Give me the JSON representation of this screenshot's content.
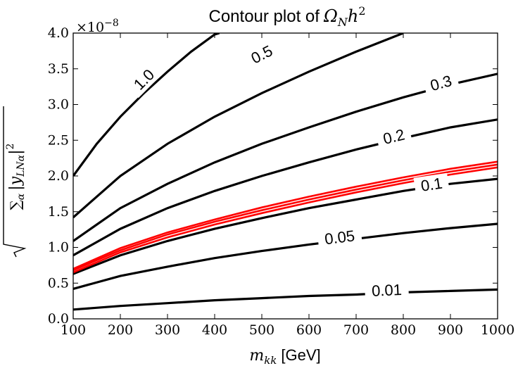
{
  "chart_data": {
    "type": "contour",
    "title_prefix": "Contour plot of",
    "title_math": "Ω",
    "title_math_sub": "N",
    "title_math_tail": "h",
    "title_math_sup": "2",
    "xlabel_math": "m",
    "xlabel_math_sub": "kk",
    "xlabel_unit": "[GeV]",
    "ylabel_root_sum": "∑",
    "ylabel_root_sum_sub": "α",
    "ylabel_root_body": "|y",
    "ylabel_root_body_sub": "LNα",
    "ylabel_root_tail": "|",
    "ylabel_root_sup": "2",
    "y_offset_text": "×10",
    "y_offset_exp": "−8",
    "xlim": [
      100,
      1000
    ],
    "ylim": [
      0.0,
      4.0
    ],
    "x_ticks": [
      "100",
      "200",
      "300",
      "400",
      "500",
      "600",
      "700",
      "800",
      "900",
      "1000"
    ],
    "y_ticks": [
      "0.0",
      "0.5",
      "1.0",
      "1.5",
      "2.0",
      "2.5",
      "3.0",
      "3.5",
      "4.0"
    ],
    "levels": [
      {
        "label": "1.0",
        "color": "#000000",
        "points": [
          [
            100,
            2.0
          ],
          [
            150,
            2.45
          ],
          [
            200,
            2.83
          ],
          [
            250,
            3.16
          ],
          [
            300,
            3.46
          ],
          [
            350,
            3.74
          ],
          [
            400,
            3.98
          ],
          [
            410,
            4.0
          ]
        ],
        "label_at": [
          250,
          3.35
        ]
      },
      {
        "label": "0.5",
        "color": "#000000",
        "points": [
          [
            100,
            1.42
          ],
          [
            200,
            2.0
          ],
          [
            300,
            2.45
          ],
          [
            400,
            2.83
          ],
          [
            500,
            3.16
          ],
          [
            600,
            3.46
          ],
          [
            700,
            3.74
          ],
          [
            800,
            4.0
          ]
        ],
        "label_at": [
          500,
          3.7
        ]
      },
      {
        "label": "0.3",
        "color": "#000000",
        "points": [
          [
            100,
            1.09
          ],
          [
            200,
            1.55
          ],
          [
            300,
            1.89
          ],
          [
            400,
            2.19
          ],
          [
            500,
            2.45
          ],
          [
            600,
            2.68
          ],
          [
            700,
            2.9
          ],
          [
            800,
            3.1
          ],
          [
            900,
            3.28
          ],
          [
            1000,
            3.43
          ]
        ],
        "label_at": [
          880,
          3.3
        ]
      },
      {
        "label": "0.2",
        "color": "#000000",
        "points": [
          [
            100,
            0.89
          ],
          [
            200,
            1.26
          ],
          [
            300,
            1.55
          ],
          [
            400,
            1.79
          ],
          [
            500,
            2.0
          ],
          [
            600,
            2.19
          ],
          [
            700,
            2.37
          ],
          [
            800,
            2.53
          ],
          [
            900,
            2.68
          ],
          [
            1000,
            2.79
          ]
        ],
        "label_at": [
          780,
          2.55
        ]
      },
      {
        "label": "0.1",
        "color": "#000000",
        "points": [
          [
            100,
            0.63
          ],
          [
            200,
            0.89
          ],
          [
            300,
            1.09
          ],
          [
            400,
            1.26
          ],
          [
            500,
            1.41
          ],
          [
            600,
            1.55
          ],
          [
            700,
            1.67
          ],
          [
            800,
            1.79
          ],
          [
            900,
            1.89
          ],
          [
            1000,
            1.96
          ]
        ],
        "label_at": [
          860,
          1.88
        ]
      },
      {
        "label": "0.05",
        "color": "#000000",
        "points": [
          [
            100,
            0.42
          ],
          [
            200,
            0.6
          ],
          [
            300,
            0.73
          ],
          [
            400,
            0.85
          ],
          [
            500,
            0.95
          ],
          [
            600,
            1.04
          ],
          [
            700,
            1.12
          ],
          [
            800,
            1.2
          ],
          [
            900,
            1.27
          ],
          [
            1000,
            1.33
          ]
        ],
        "label_at": [
          665,
          1.14
        ]
      },
      {
        "label": "0.01",
        "color": "#000000",
        "points": [
          [
            100,
            0.13
          ],
          [
            200,
            0.18
          ],
          [
            300,
            0.22
          ],
          [
            400,
            0.26
          ],
          [
            500,
            0.29
          ],
          [
            600,
            0.32
          ],
          [
            700,
            0.34
          ],
          [
            800,
            0.37
          ],
          [
            900,
            0.39
          ],
          [
            1000,
            0.41
          ]
        ],
        "label_at": [
          765,
          0.4
        ]
      }
    ],
    "highlight": {
      "color": "#ff0000",
      "curves": [
        [
          [
            100,
            0.65
          ],
          [
            200,
            0.93
          ],
          [
            300,
            1.14
          ],
          [
            400,
            1.32
          ],
          [
            500,
            1.48
          ],
          [
            600,
            1.63
          ],
          [
            700,
            1.77
          ],
          [
            800,
            1.9
          ],
          [
            900,
            2.02
          ],
          [
            1000,
            2.12
          ]
        ],
        [
          [
            100,
            0.68
          ],
          [
            200,
            0.96
          ],
          [
            300,
            1.18
          ],
          [
            400,
            1.36
          ],
          [
            500,
            1.52
          ],
          [
            600,
            1.67
          ],
          [
            700,
            1.81
          ],
          [
            800,
            1.94
          ],
          [
            900,
            2.06
          ],
          [
            1000,
            2.16
          ]
        ],
        [
          [
            100,
            0.7
          ],
          [
            200,
            0.99
          ],
          [
            300,
            1.21
          ],
          [
            400,
            1.39
          ],
          [
            500,
            1.56
          ],
          [
            600,
            1.71
          ],
          [
            700,
            1.85
          ],
          [
            800,
            1.98
          ],
          [
            900,
            2.1
          ],
          [
            1000,
            2.2
          ]
        ]
      ]
    },
    "grid": false
  }
}
